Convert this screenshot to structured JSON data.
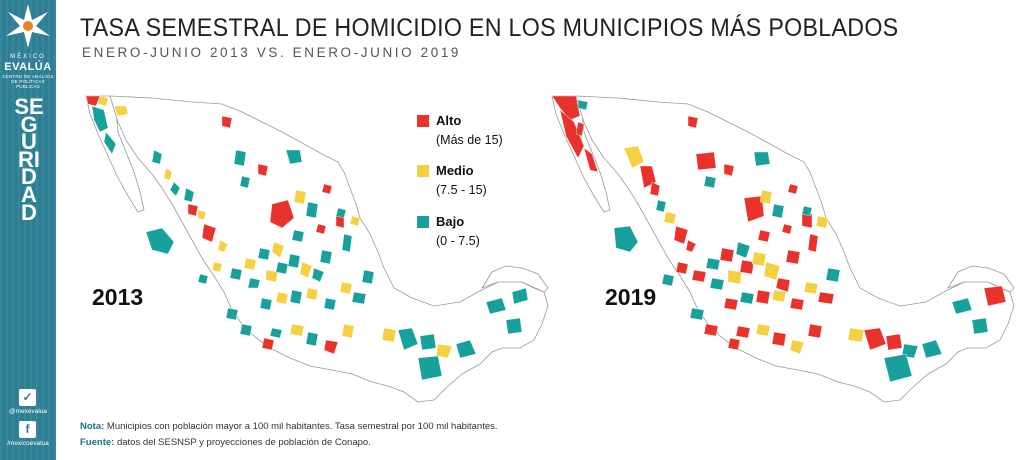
{
  "header": {
    "title": "TASA SEMESTRAL DE HOMICIDIO EN LOS MUNICIPIOS MÁS POBLADOS",
    "subtitle": "ENERO-JUNIO 2013 VS. ENERO-JUNIO 2019"
  },
  "sidebar": {
    "brand_top": "MÉXICO",
    "brand_name": "EVALÚA",
    "brand_line1": "CENTRO DE ANÁLISIS",
    "brand_line2": "DE POLÍTICAS PÚBLICAS",
    "section": "SEGURIDAD",
    "twitter_handle": "@mexevalua",
    "facebook_handle": "/mexicoevalua",
    "twitter_icon": "twitter-icon",
    "facebook_icon": "facebook-icon"
  },
  "legend": [
    {
      "label": "Alto",
      "range": "(Más de 15)",
      "color": "#e8322b"
    },
    {
      "label": "Medio",
      "range": "(7.5 - 15)",
      "color": "#f5d142"
    },
    {
      "label": "Bajo",
      "range": "(0 - 7.5)",
      "color": "#17a19a"
    }
  ],
  "maps": {
    "year_2013": "2013",
    "year_2019": "2019"
  },
  "colors": {
    "alto": "#e8322b",
    "medio": "#f5d142",
    "bajo": "#17a19a",
    "sidebar": "#2d7f94"
  },
  "notes": {
    "note_label": "Nota:",
    "note_text": " Municipios con población mayor a 100 mil habitantes. Tasa semestral por 100 mil habitantes.",
    "source_label": "Fuente:",
    "source_text": " datos del SESNSP y proyecciones de población de Conapo."
  }
}
